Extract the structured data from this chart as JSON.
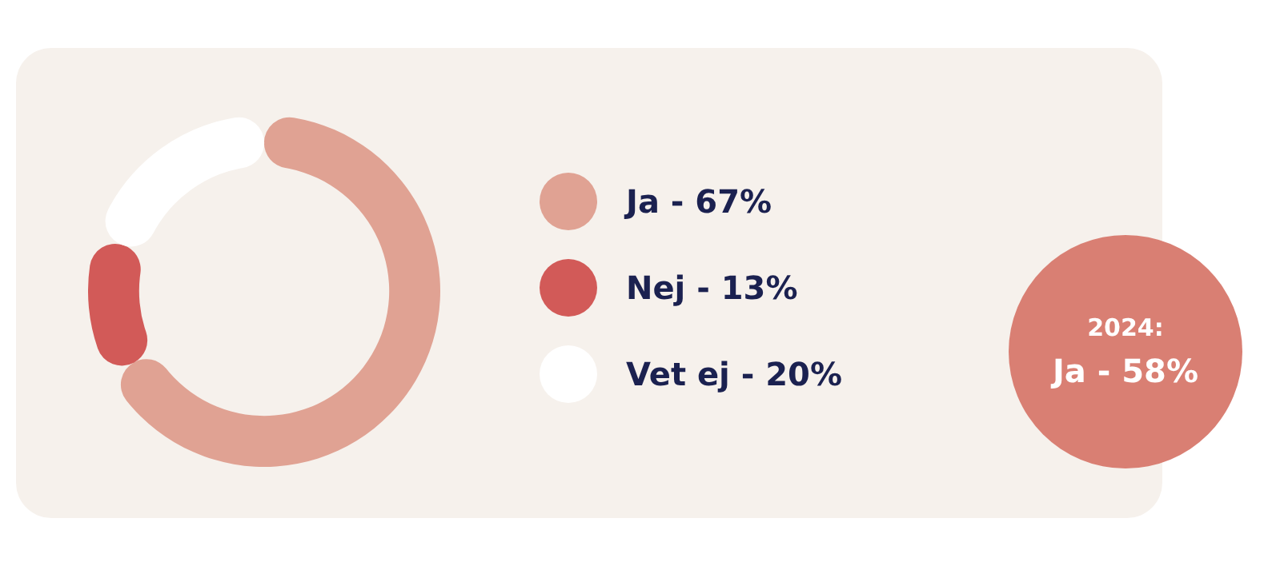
{
  "chart_data": {
    "type": "donut",
    "categories": [
      "Ja",
      "Nej",
      "Vet ej"
    ],
    "values": [
      67,
      13,
      20
    ],
    "value_labels": [
      "67%",
      "13%",
      "20%"
    ],
    "colors": [
      "#e0a293",
      "#d25a58",
      "#ffffff"
    ],
    "legend": "right",
    "annotations": [
      "2024:",
      "Ja - 58%"
    ]
  }
}
